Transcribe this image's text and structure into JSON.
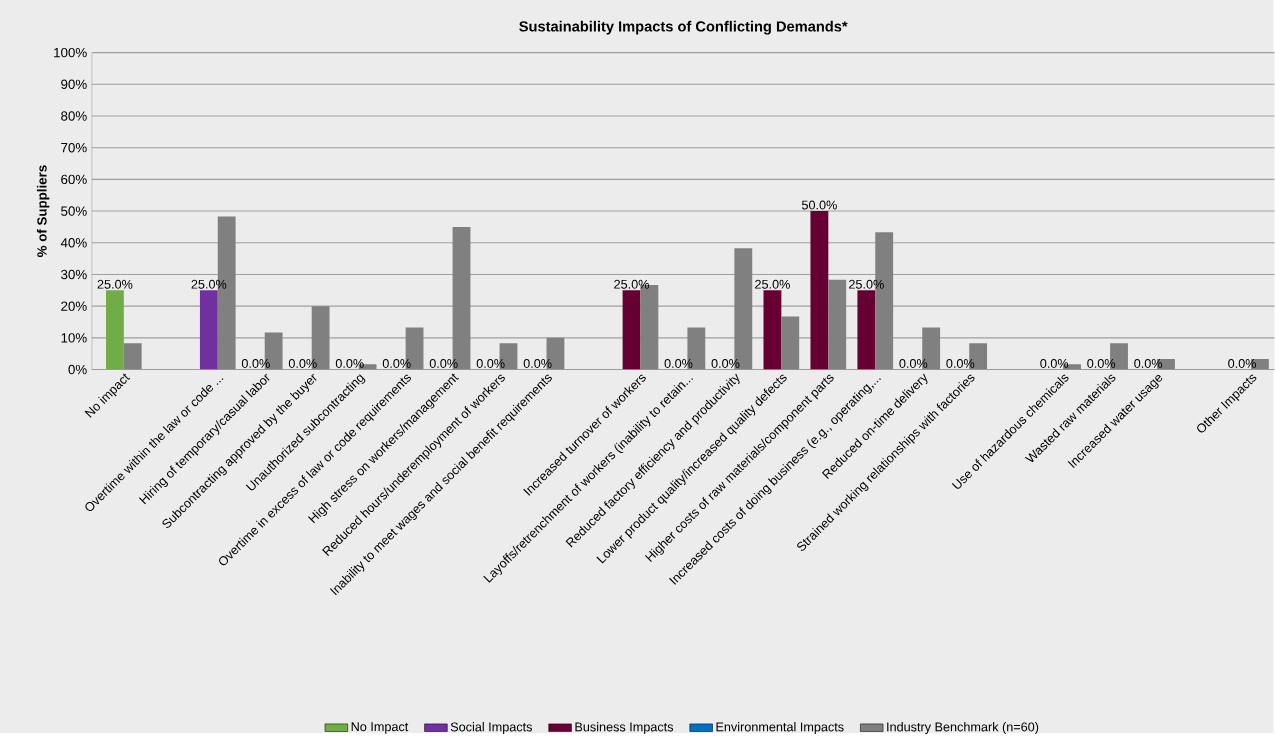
{
  "chart_data": {
    "type": "bar",
    "title": "Sustainability Impacts of Conflicting Demands*",
    "ylabel": "% of Suppliers",
    "categories": [
      "No impact",
      null,
      "Overtime within the law or code ...",
      "Hiring of temporary/casual labor",
      "Subcontracting approved by the buyer",
      "Unauthorized subcontracting",
      "Overtime in excess of law or code requirements",
      "High stress on workers/management",
      "Reduced hours/underemployment of workers",
      "Inability to meet wages and social benefit requirements",
      null,
      "Increased turnover of workers",
      "Layoffs/retrenchment of workers (inability to retain...",
      "Reduced factory efficiency and productivity",
      "Lower product quality/increased quality defects",
      "Higher costs of raw materials/component parts",
      "Increased costs of doing business (e.g., operating,...",
      "Reduced on-time delivery",
      "Strained working relationships with factories",
      null,
      "Use of hazardous chemicals",
      "Wasted raw materials",
      "Increased water usage",
      null,
      "Other Impacts"
    ],
    "series": [
      {
        "name": "No Impact",
        "color": "#70ad47",
        "values": [
          25,
          null,
          null,
          null,
          null,
          null,
          null,
          null,
          null,
          null,
          null,
          null,
          null,
          null,
          null,
          null,
          null,
          null,
          null,
          null,
          null,
          null,
          null,
          null,
          null
        ],
        "value_labels": [
          "25.0%",
          null,
          null,
          null,
          null,
          null,
          null,
          null,
          null,
          null,
          null,
          null,
          null,
          null,
          null,
          null,
          null,
          null,
          null,
          null,
          null,
          null,
          null,
          null,
          null
        ]
      },
      {
        "name": "Social Impacts",
        "color": "#7030a0",
        "values": [
          null,
          null,
          25,
          0,
          0,
          0,
          0,
          0,
          0,
          0,
          null,
          null,
          null,
          null,
          null,
          null,
          null,
          null,
          null,
          null,
          null,
          null,
          null,
          null,
          null
        ],
        "value_labels": [
          null,
          null,
          "25.0%",
          "0.0%",
          "0.0%",
          "0.0%",
          "0.0%",
          "0.0%",
          "0.0%",
          "0.0%",
          null,
          null,
          null,
          null,
          null,
          null,
          null,
          null,
          null,
          null,
          null,
          null,
          null,
          null,
          null
        ]
      },
      {
        "name": "Business Impacts",
        "color": "#660033",
        "values": [
          null,
          null,
          null,
          null,
          null,
          null,
          null,
          null,
          null,
          null,
          null,
          25,
          0,
          0,
          25,
          50,
          25,
          0,
          0,
          null,
          null,
          null,
          null,
          null,
          null
        ],
        "value_labels": [
          null,
          null,
          null,
          null,
          null,
          null,
          null,
          null,
          null,
          null,
          null,
          "25.0%",
          "0.0%",
          "0.0%",
          "25.0%",
          "50.0%",
          "25.0%",
          "0.0%",
          "0.0%",
          null,
          null,
          null,
          null,
          null,
          null
        ]
      },
      {
        "name": "Environmental Impacts",
        "color": "#0070c0",
        "values": [
          null,
          null,
          null,
          null,
          null,
          null,
          null,
          null,
          null,
          null,
          null,
          null,
          null,
          null,
          null,
          null,
          null,
          null,
          null,
          null,
          0,
          0,
          0,
          null,
          0
        ],
        "value_labels": [
          null,
          null,
          null,
          null,
          null,
          null,
          null,
          null,
          null,
          null,
          null,
          null,
          null,
          null,
          null,
          null,
          null,
          null,
          null,
          null,
          "0.0%",
          "0.0%",
          "0.0%",
          null,
          "0.0%"
        ]
      },
      {
        "name": "Industry Benchmark (n=60)",
        "color": "#808080",
        "values": [
          8.3,
          null,
          48.3,
          11.7,
          20,
          1.7,
          13.3,
          45,
          8.3,
          10,
          null,
          26.7,
          13.3,
          38.3,
          16.7,
          28.3,
          43.3,
          13.3,
          8.3,
          null,
          1.7,
          8.3,
          3.3,
          null,
          3.3
        ]
      }
    ],
    "ylim": [
      0,
      100
    ],
    "yticks": [
      {
        "value": 0,
        "label": "0%"
      },
      {
        "value": 10,
        "label": "10%"
      },
      {
        "value": 20,
        "label": "20%"
      },
      {
        "value": 30,
        "label": "30%"
      },
      {
        "value": 40,
        "label": "40%"
      },
      {
        "value": 50,
        "label": "50%"
      },
      {
        "value": 60,
        "label": "60%"
      },
      {
        "value": 70,
        "label": "70%"
      },
      {
        "value": 80,
        "label": "80%"
      },
      {
        "value": 90,
        "label": "90%"
      },
      {
        "value": 100,
        "label": "100%"
      }
    ],
    "grid": "y",
    "legend": "bottom"
  }
}
